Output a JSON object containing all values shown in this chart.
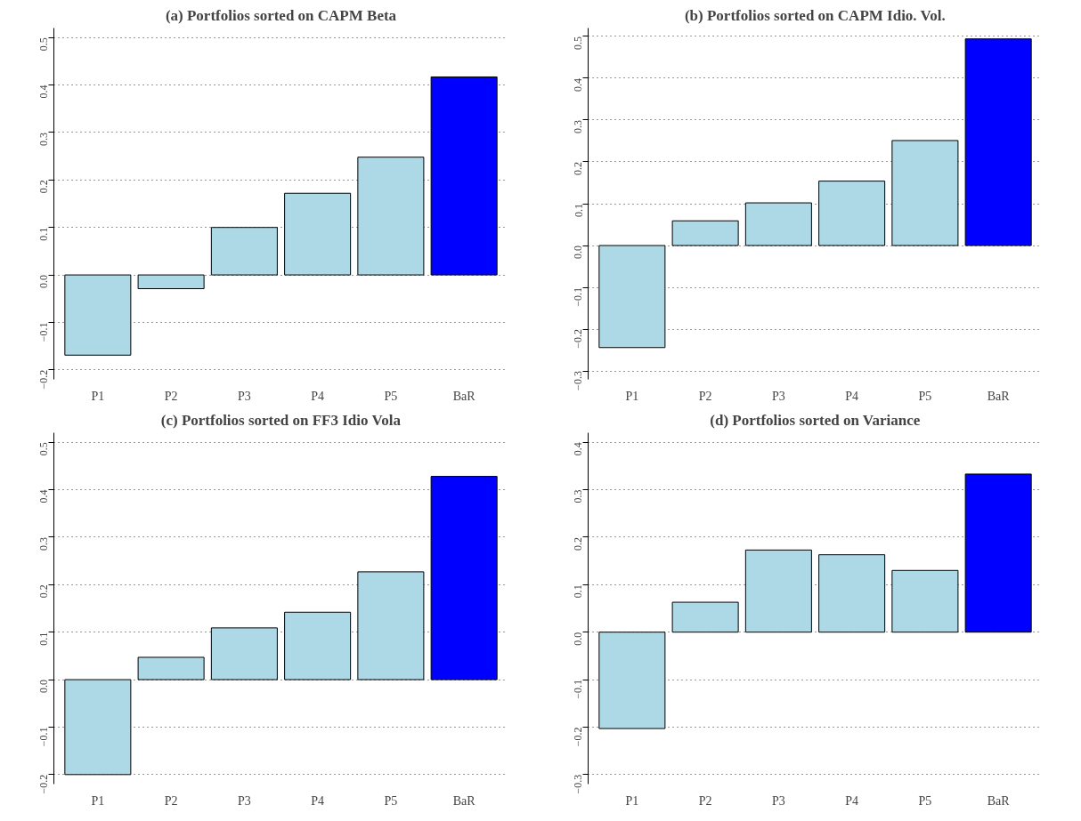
{
  "chart_data": [
    {
      "type": "bar",
      "title": "(a) Portfolios sorted on CAPM Beta",
      "categories": [
        "P1",
        "P2",
        "P3",
        "P4",
        "P5",
        "BaR"
      ],
      "values": [
        -0.169,
        -0.029,
        0.1,
        0.172,
        0.248,
        0.417
      ],
      "colors": [
        "#add8e6",
        "#add8e6",
        "#add8e6",
        "#add8e6",
        "#add8e6",
        "#0000ff"
      ],
      "ylim": [
        -0.22,
        0.52
      ],
      "yticks": [
        {
          "value": -0.2,
          "label": "−0.2"
        },
        {
          "value": -0.1,
          "label": "−0.1"
        },
        {
          "value": 0,
          "label": "0.0"
        },
        0.1,
        0.2,
        0.3,
        0.4,
        0.5
      ],
      "grid": "y"
    },
    {
      "type": "bar",
      "title": "(b) Portfolios sorted on CAPM Idio. Vol.",
      "categories": [
        "P1",
        "P2",
        "P3",
        "P4",
        "P5",
        "BaR"
      ],
      "values": [
        -0.244,
        0.059,
        0.102,
        0.154,
        0.251,
        0.494
      ],
      "colors": [
        "#add8e6",
        "#add8e6",
        "#add8e6",
        "#add8e6",
        "#add8e6",
        "#0000ff"
      ],
      "ylim": [
        -0.32,
        0.52
      ],
      "yticks": [
        {
          "value": -0.3,
          "label": "−0.3"
        },
        {
          "value": -0.2,
          "label": "−0.2"
        },
        {
          "value": -0.1,
          "label": "−0.1"
        },
        {
          "value": 0,
          "label": "0.0"
        },
        0.1,
        0.2,
        0.3,
        0.4,
        0.5
      ],
      "grid": "y"
    },
    {
      "type": "bar",
      "title": "(c) Portfolios sorted on FF3 Idio Vola",
      "categories": [
        "P1",
        "P2",
        "P3",
        "P4",
        "P5",
        "BaR"
      ],
      "values": [
        -0.2,
        0.047,
        0.109,
        0.142,
        0.227,
        0.428
      ],
      "colors": [
        "#add8e6",
        "#add8e6",
        "#add8e6",
        "#add8e6",
        "#add8e6",
        "#0000ff"
      ],
      "ylim": [
        -0.22,
        0.52
      ],
      "yticks": [
        {
          "value": -0.2,
          "label": "−0.2"
        },
        {
          "value": -0.1,
          "label": "−0.1"
        },
        {
          "value": 0,
          "label": "0.0"
        },
        0.1,
        0.2,
        0.3,
        0.4,
        0.5
      ],
      "grid": "y"
    },
    {
      "type": "bar",
      "title": "(d) Portfolios sorted on Variance",
      "categories": [
        "P1",
        "P2",
        "P3",
        "P4",
        "P5",
        "BaR"
      ],
      "values": [
        -0.203,
        0.063,
        0.173,
        0.163,
        0.13,
        0.333
      ],
      "colors": [
        "#add8e6",
        "#add8e6",
        "#add8e6",
        "#add8e6",
        "#add8e6",
        "#0000ff"
      ],
      "ylim": [
        -0.32,
        0.42
      ],
      "yticks": [
        {
          "value": -0.3,
          "label": "−0.3"
        },
        {
          "value": -0.2,
          "label": "−0.2"
        },
        {
          "value": -0.1,
          "label": "−0.1"
        },
        {
          "value": 0,
          "label": "0.0"
        },
        0.1,
        0.2,
        0.3,
        0.4
      ],
      "grid": "y"
    }
  ]
}
